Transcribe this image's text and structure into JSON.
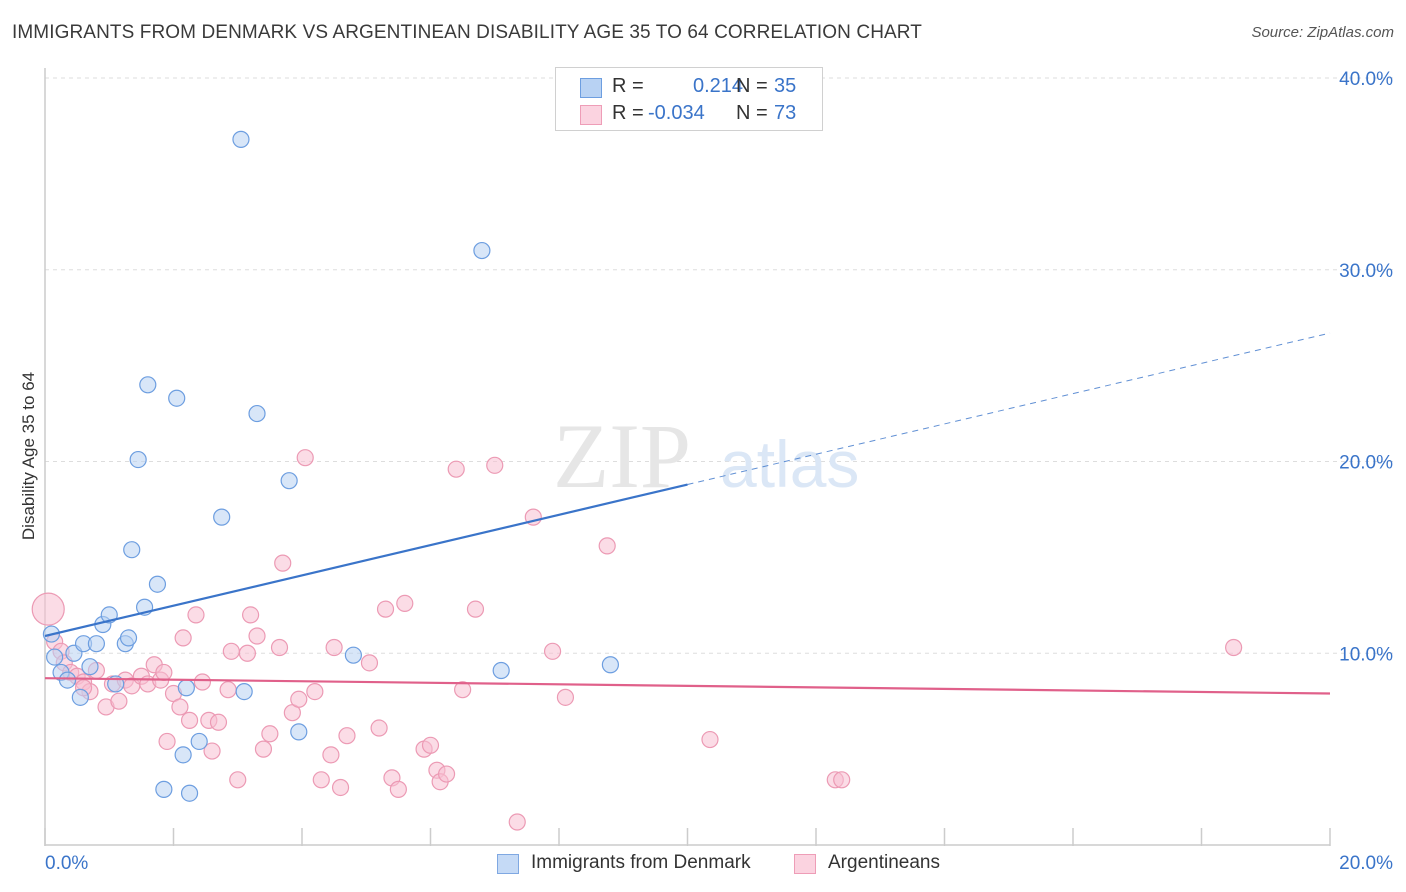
{
  "title": "IMMIGRANTS FROM DENMARK VS ARGENTINEAN DISABILITY AGE 35 TO 64 CORRELATION CHART",
  "source": "Source: ZipAtlas.com",
  "watermark": {
    "zip": "ZIP",
    "atlas": "atlas"
  },
  "legend": {
    "rows": [
      {
        "r_label": "R =",
        "r_value": "0.214",
        "n_label": "N =",
        "n_value": "35",
        "color": "#a9c8f0",
        "stroke": "#6d9ee0"
      },
      {
        "r_label": "R =",
        "r_value": "-0.034",
        "n_label": "N =",
        "n_value": "73",
        "color": "#f8c4d4",
        "stroke": "#e890ac"
      }
    ]
  },
  "bottom_legend": [
    {
      "label": "Immigrants from Denmark",
      "color": "#c5daf6",
      "stroke": "#7fa8e2"
    },
    {
      "label": "Argentineans",
      "color": "#fbd3e0",
      "stroke": "#ee9db7"
    }
  ],
  "chart_data": {
    "type": "scatter",
    "ylabel": "Disability Age 35 to 64",
    "xlim": [
      0,
      20
    ],
    "ylim": [
      0,
      40
    ],
    "x_tick_labels": [
      "0.0%",
      "20.0%"
    ],
    "y_tick_labels": [
      "10.0%",
      "20.0%",
      "30.0%",
      "40.0%"
    ],
    "y_ticks": [
      10,
      20,
      30,
      40
    ],
    "colors": {
      "blue": "#3a74c9",
      "blue_fill": "#b8d2f3",
      "pink": "#e0608a",
      "pink_fill": "#f7bfd1"
    },
    "series": [
      {
        "name": "Immigrants from Denmark",
        "points": [
          [
            0.1,
            11.0
          ],
          [
            0.15,
            9.8
          ],
          [
            0.25,
            9.0
          ],
          [
            0.35,
            8.6
          ],
          [
            0.45,
            10.0
          ],
          [
            0.55,
            7.7
          ],
          [
            0.6,
            10.5
          ],
          [
            0.7,
            9.3
          ],
          [
            0.8,
            10.5
          ],
          [
            0.9,
            11.5
          ],
          [
            1.0,
            12.0
          ],
          [
            1.1,
            8.4
          ],
          [
            1.25,
            10.5
          ],
          [
            1.3,
            10.8
          ],
          [
            1.45,
            20.1
          ],
          [
            1.35,
            15.4
          ],
          [
            1.55,
            12.4
          ],
          [
            1.6,
            24.0
          ],
          [
            1.75,
            13.6
          ],
          [
            1.85,
            2.9
          ],
          [
            2.05,
            23.3
          ],
          [
            2.15,
            4.7
          ],
          [
            2.2,
            8.2
          ],
          [
            2.25,
            2.7
          ],
          [
            2.4,
            5.4
          ],
          [
            2.75,
            17.1
          ],
          [
            3.05,
            36.8
          ],
          [
            3.1,
            8.0
          ],
          [
            3.3,
            22.5
          ],
          [
            3.8,
            19.0
          ],
          [
            3.95,
            5.9
          ],
          [
            4.8,
            9.9
          ],
          [
            6.8,
            31.0
          ],
          [
            7.1,
            9.1
          ],
          [
            8.8,
            9.4
          ]
        ],
        "trend": {
          "x0": 0,
          "y0": 10.9,
          "x1": 10,
          "y1": 18.8,
          "dash_to_x": 20,
          "dash_to_y": 26.7
        }
      },
      {
        "name": "Argentineans",
        "points": [
          [
            0.05,
            12.3
          ],
          [
            0.15,
            10.6
          ],
          [
            0.25,
            10.1
          ],
          [
            0.3,
            9.5
          ],
          [
            0.4,
            9.0
          ],
          [
            0.5,
            8.8
          ],
          [
            0.6,
            8.5
          ],
          [
            0.7,
            8.0
          ],
          [
            0.8,
            9.1
          ],
          [
            0.95,
            7.2
          ],
          [
            1.05,
            8.4
          ],
          [
            1.15,
            7.5
          ],
          [
            1.25,
            8.6
          ],
          [
            1.35,
            8.3
          ],
          [
            1.5,
            8.8
          ],
          [
            1.6,
            8.4
          ],
          [
            1.7,
            9.4
          ],
          [
            1.8,
            8.6
          ],
          [
            1.85,
            9.0
          ],
          [
            1.9,
            5.4
          ],
          [
            2.0,
            7.9
          ],
          [
            2.1,
            7.2
          ],
          [
            2.15,
            10.8
          ],
          [
            2.25,
            6.5
          ],
          [
            2.35,
            12.0
          ],
          [
            2.45,
            8.5
          ],
          [
            2.55,
            6.5
          ],
          [
            2.6,
            4.9
          ],
          [
            2.7,
            6.4
          ],
          [
            2.85,
            8.1
          ],
          [
            2.9,
            10.1
          ],
          [
            3.0,
            3.4
          ],
          [
            3.15,
            10.0
          ],
          [
            3.2,
            12.0
          ],
          [
            3.3,
            10.9
          ],
          [
            3.4,
            5.0
          ],
          [
            3.5,
            5.8
          ],
          [
            3.65,
            10.3
          ],
          [
            3.7,
            14.7
          ],
          [
            3.85,
            6.9
          ],
          [
            3.95,
            7.6
          ],
          [
            4.05,
            20.2
          ],
          [
            4.2,
            8.0
          ],
          [
            4.3,
            3.4
          ],
          [
            4.45,
            4.7
          ],
          [
            4.5,
            10.3
          ],
          [
            4.6,
            3.0
          ],
          [
            4.7,
            5.7
          ],
          [
            5.05,
            9.5
          ],
          [
            5.2,
            6.1
          ],
          [
            5.3,
            12.3
          ],
          [
            5.4,
            3.5
          ],
          [
            5.5,
            2.9
          ],
          [
            5.6,
            12.6
          ],
          [
            5.9,
            5.0
          ],
          [
            6.0,
            5.2
          ],
          [
            6.1,
            3.9
          ],
          [
            6.15,
            3.3
          ],
          [
            6.25,
            3.7
          ],
          [
            6.4,
            19.6
          ],
          [
            6.5,
            8.1
          ],
          [
            6.7,
            12.3
          ],
          [
            7.0,
            19.8
          ],
          [
            7.35,
            1.2
          ],
          [
            7.6,
            17.1
          ],
          [
            7.9,
            10.1
          ],
          [
            8.1,
            7.7
          ],
          [
            8.75,
            15.6
          ],
          [
            10.35,
            5.5
          ],
          [
            12.3,
            3.4
          ],
          [
            12.4,
            3.4
          ],
          [
            18.5,
            10.3
          ],
          [
            0.6,
            8.2
          ]
        ],
        "trend": {
          "x0": 0,
          "y0": 8.7,
          "x1": 20,
          "y1": 7.9
        }
      }
    ]
  }
}
